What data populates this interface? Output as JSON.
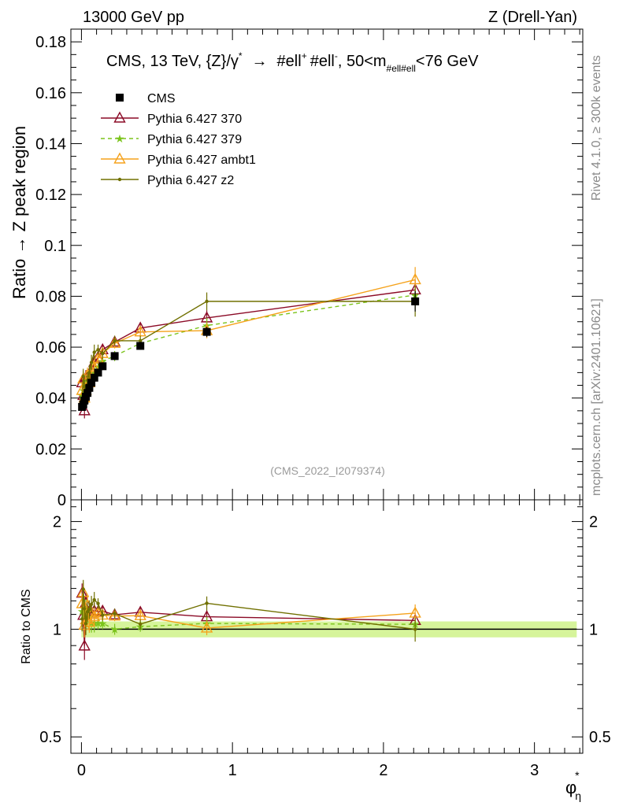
{
  "header": {
    "left": "13000 GeV pp",
    "right": "Z (Drell-Yan)"
  },
  "side_text": {
    "rivet": "Rivet 4.1.0, ≥ 300k events",
    "mcplots": "mcplots.cern.ch [arXiv:2401.10621]"
  },
  "chart_data": [
    {
      "type": "line",
      "title": {
        "main": "CMS, 13 TeV, {Z}/γ",
        "sup1": "*",
        "arrow": "→",
        "part2": "#ell",
        "sup2": "+",
        "part3": "#ell",
        "sup3": "-",
        "part4": ", 50<m",
        "sub": "#ell#ell",
        "part5": "<76 GeV"
      },
      "ylabel": "Ratio → Z peak region",
      "xlim": [
        -0.07,
        3.32
      ],
      "ylim": [
        0,
        0.185
      ],
      "yticks": [
        {
          "v": 0,
          "label": "0"
        },
        {
          "v": 0.02,
          "label": "0.02"
        },
        {
          "v": 0.04,
          "label": "0.04"
        },
        {
          "v": 0.06,
          "label": "0.06"
        },
        {
          "v": 0.08,
          "label": "0.08"
        },
        {
          "v": 0.1,
          "label": "0.1"
        },
        {
          "v": 0.12,
          "label": "0.12"
        },
        {
          "v": 0.14,
          "label": "0.14"
        },
        {
          "v": 0.16,
          "label": "0.16"
        },
        {
          "v": 0.18,
          "label": "0.18"
        }
      ],
      "watermark": "(CMS_2022_I2079374)",
      "legend_position": "top-left",
      "x": [
        0.004,
        0.012,
        0.02,
        0.029,
        0.04,
        0.052,
        0.066,
        0.085,
        0.11,
        0.14,
        0.22,
        0.39,
        0.83,
        2.21
      ],
      "series": [
        {
          "name": "CMS",
          "color": "#000000",
          "style": "data",
          "values": [
            0.0365,
            0.0375,
            0.039,
            0.0405,
            0.042,
            0.044,
            0.046,
            0.048,
            0.05,
            0.0525,
            0.0565,
            0.0605,
            0.066,
            0.078
          ],
          "errors": [
            0.0015,
            0.0015,
            0.0015,
            0.0015,
            0.0015,
            0.0015,
            0.0015,
            0.0015,
            0.0015,
            0.0015,
            0.0015,
            0.0015,
            0.002,
            0.004
          ]
        },
        {
          "name": "Pythia 6.427 370",
          "color": "#8b0a26",
          "style": "solid",
          "marker": "triangle-open",
          "values": [
            0.046,
            0.041,
            0.035,
            0.048,
            0.047,
            0.049,
            0.051,
            0.054,
            0.056,
            0.059,
            0.062,
            0.0675,
            0.0715,
            0.0825
          ],
          "errors": [
            0.003,
            0.003,
            0.003,
            0.003,
            0.003,
            0.003,
            0.003,
            0.003,
            0.002,
            0.002,
            0.002,
            0.002,
            0.003,
            0.004
          ]
        },
        {
          "name": "Pythia 6.427 379",
          "color": "#7bc41c",
          "style": "dashed",
          "marker": "star",
          "values": [
            0.041,
            0.043,
            0.0445,
            0.046,
            0.0455,
            0.0475,
            0.048,
            0.05,
            0.052,
            0.0545,
            0.0565,
            0.0615,
            0.0685,
            0.0805
          ],
          "errors": [
            0.003,
            0.003,
            0.003,
            0.003,
            0.003,
            0.003,
            0.003,
            0.003,
            0.002,
            0.002,
            0.002,
            0.002,
            0.003,
            0.004
          ]
        },
        {
          "name": "Pythia 6.427 ambt1",
          "color": "#f5a21b",
          "style": "solid",
          "marker": "triangle-open",
          "values": [
            0.043,
            0.0475,
            0.04,
            0.043,
            0.049,
            0.046,
            0.0505,
            0.052,
            0.0555,
            0.0575,
            0.0615,
            0.066,
            0.0665,
            0.0865
          ],
          "errors": [
            0.003,
            0.003,
            0.003,
            0.003,
            0.003,
            0.003,
            0.003,
            0.003,
            0.002,
            0.002,
            0.002,
            0.002,
            0.003,
            0.005
          ]
        },
        {
          "name": "Pythia 6.427 z2",
          "color": "#707000",
          "style": "solid",
          "marker": "dot",
          "values": [
            0.039,
            0.0485,
            0.0445,
            0.042,
            0.047,
            0.05,
            0.054,
            0.058,
            0.059,
            0.0575,
            0.0625,
            0.0625,
            0.078,
            0.078
          ],
          "errors": [
            0.003,
            0.003,
            0.003,
            0.003,
            0.003,
            0.003,
            0.003,
            0.003,
            0.002,
            0.002,
            0.002,
            0.002,
            0.0035,
            0.006
          ]
        }
      ]
    },
    {
      "type": "line",
      "ylabel": "Ratio to CMS",
      "xlabel": "φ",
      "xlabel_sup": "*",
      "xlabel_sub": "η",
      "xlim": [
        -0.07,
        3.32
      ],
      "ylim": [
        0.45,
        2.3
      ],
      "scale": "log",
      "yticks": [
        {
          "v": 0.5,
          "label": "0.5"
        },
        {
          "v": 1,
          "label": "1"
        },
        {
          "v": 2,
          "label": "2"
        }
      ],
      "xticks": [
        {
          "v": 0,
          "label": "0"
        },
        {
          "v": 1,
          "label": "1"
        },
        {
          "v": 2,
          "label": "2"
        },
        {
          "v": 3,
          "label": "3"
        }
      ],
      "band_color": "#c8f07a",
      "reference_value": 1
    }
  ]
}
